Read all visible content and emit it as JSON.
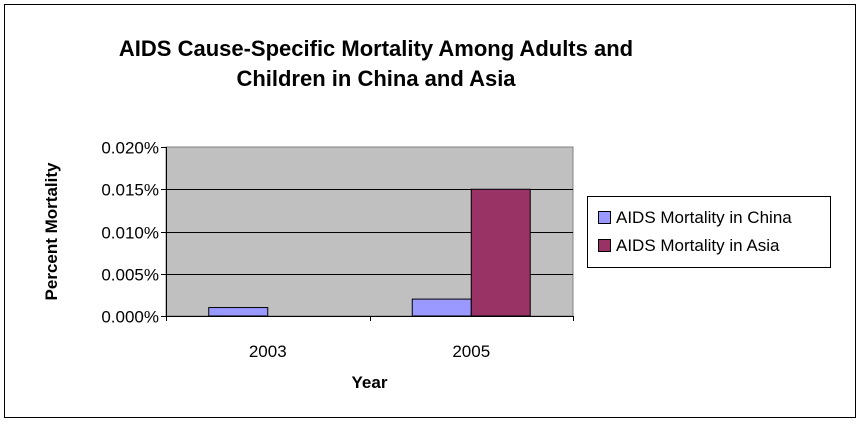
{
  "chart_data": {
    "type": "bar",
    "title_lines": [
      "AIDS Cause-Specific Mortality Among Adults and",
      "Children in China and Asia"
    ],
    "xlabel": "Year",
    "ylabel": "Percent Mortality",
    "categories": [
      "2003",
      "2005"
    ],
    "series": [
      {
        "name": "AIDS Mortality in China",
        "color": "#9999ff",
        "values": [
          0.001,
          0.002
        ]
      },
      {
        "name": "AIDS Mortality in Asia",
        "color": "#993366",
        "values": [
          0,
          0.015
        ]
      }
    ],
    "ylim": [
      0,
      0.02
    ],
    "yticks": [
      "0.000%",
      "0.005%",
      "0.010%",
      "0.015%",
      "0.020%"
    ],
    "plot_background": "#c0c0c0",
    "grid": true,
    "legend_position": "right"
  }
}
